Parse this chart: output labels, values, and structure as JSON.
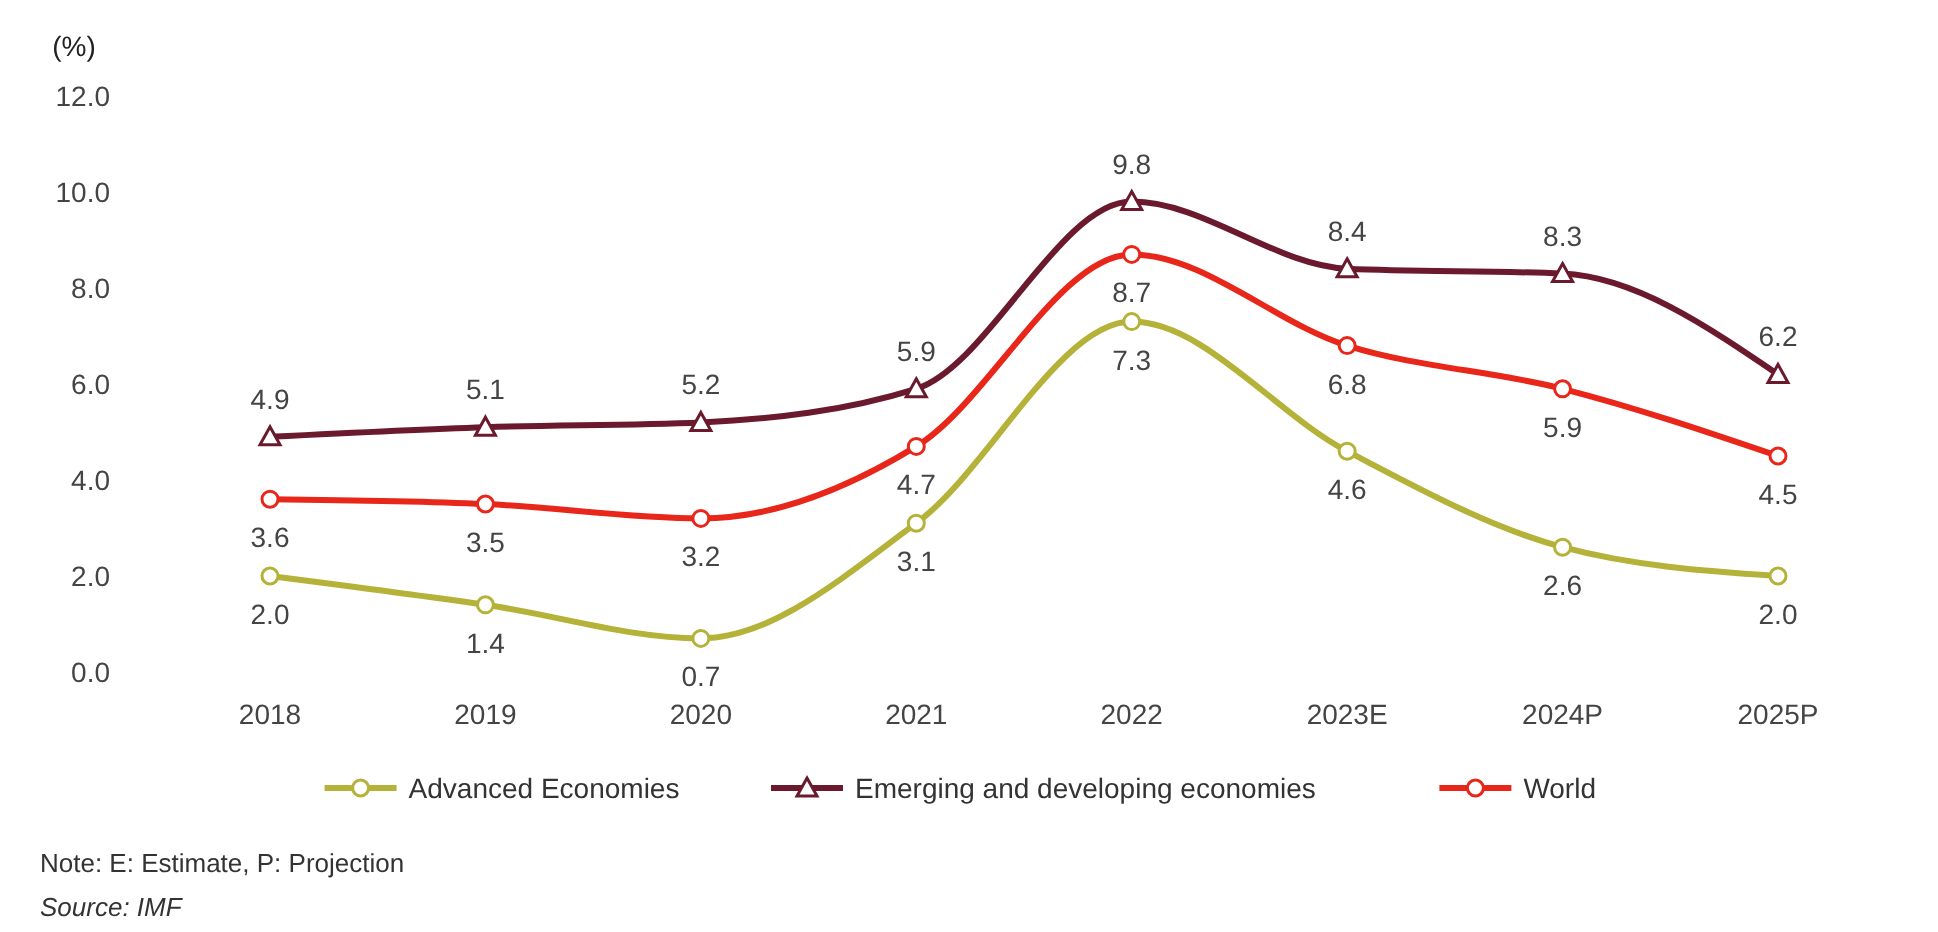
{
  "chart_data": {
    "type": "line",
    "ylabel": "(%)",
    "categories": [
      "2018",
      "2019",
      "2020",
      "2021",
      "2022",
      "2023E",
      "2024P",
      "2025P"
    ],
    "series": [
      {
        "name": "Advanced Economies",
        "color": "#b5b23a",
        "marker": "circle",
        "values": [
          2.0,
          1.4,
          0.7,
          3.1,
          7.3,
          4.6,
          2.6,
          2.0
        ],
        "value_labels": [
          "2.0",
          "1.4",
          "0.7",
          "3.1",
          "7.3",
          "4.6",
          "2.6",
          "2.0"
        ]
      },
      {
        "name": "Emerging and developing economies",
        "color": "#6b1a2e",
        "marker": "triangle",
        "values": [
          4.9,
          5.1,
          5.2,
          5.9,
          9.8,
          8.4,
          8.3,
          6.2
        ],
        "value_labels": [
          "4.9",
          "5.1",
          "5.2",
          "5.9",
          "9.8",
          "8.4",
          "8.3",
          "6.2"
        ]
      },
      {
        "name": "World",
        "color": "#e8261a",
        "marker": "circle",
        "values": [
          3.6,
          3.5,
          3.2,
          4.7,
          8.7,
          6.8,
          5.9,
          4.5
        ],
        "value_labels": [
          "3.6",
          "3.5",
          "3.2",
          "4.7",
          "8.7",
          "6.8",
          "5.9",
          "4.5"
        ]
      }
    ],
    "ylim": [
      0,
      12
    ],
    "yticks": [
      {
        "value": 0,
        "label": "0.0"
      },
      {
        "value": 2,
        "label": "2.0"
      },
      {
        "value": 4,
        "label": "4.0"
      },
      {
        "value": 6,
        "label": "6.0"
      },
      {
        "value": 8,
        "label": "8.0"
      },
      {
        "value": 10,
        "label": "10.0"
      },
      {
        "value": 12,
        "label": "12.0"
      }
    ],
    "legend": "bottom",
    "grid": false,
    "annotations": [
      "Note: E: Estimate, P: Projection",
      "Source: IMF"
    ]
  }
}
